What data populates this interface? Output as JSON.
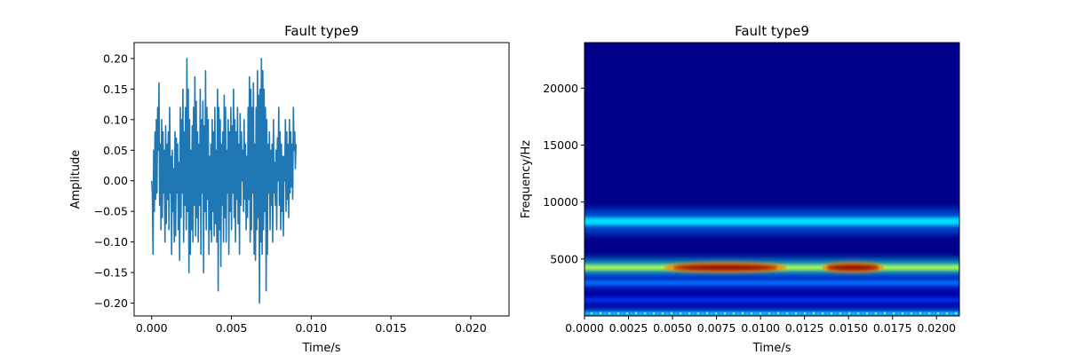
{
  "chart_data": [
    {
      "type": "line",
      "title": "Fault type9",
      "xlabel": "Time/s",
      "ylabel": "Amplitude",
      "xlim": [
        -0.0011,
        0.0224
      ],
      "ylim": [
        -0.221,
        0.226
      ],
      "x_ticks": [
        0.0,
        0.005,
        0.01,
        0.015,
        0.02
      ],
      "x_tick_labels": [
        "0.000",
        "0.005",
        "0.010",
        "0.015",
        "0.020"
      ],
      "y_ticks": [
        -0.2,
        -0.15,
        -0.1,
        -0.05,
        0.0,
        0.05,
        0.1,
        0.15,
        0.2
      ],
      "y_tick_labels": [
        "−0.20",
        "−0.15",
        "−0.10",
        "−0.05",
        "0.00",
        "0.05",
        "0.10",
        "0.15",
        "0.20"
      ],
      "grid": false,
      "line_color": "#1f77b4",
      "series": [
        {
          "sample_interval": 4.17e-05,
          "values": [
            0.0,
            -0.02,
            -0.12,
            0.05,
            -0.05,
            0.08,
            -0.03,
            0.1,
            -0.02,
            0.12,
            0.05,
            0.16,
            -0.04,
            0.06,
            -0.08,
            0.1,
            -0.06,
            0.08,
            -0.02,
            0.05,
            -0.1,
            0.09,
            -0.07,
            0.06,
            -0.03,
            0.08,
            -0.08,
            0.12,
            -0.02,
            0.04,
            -0.12,
            0.05,
            -0.05,
            0.02,
            -0.1,
            0.08,
            -0.09,
            0.07,
            -0.02,
            0.06,
            -0.08,
            0.03,
            -0.13,
            0.12,
            -0.06,
            0.1,
            -0.02,
            0.15,
            -0.1,
            0.08,
            -0.04,
            0.12,
            -0.08,
            0.2,
            -0.05,
            0.15,
            -0.15,
            0.1,
            -0.12,
            0.05,
            -0.08,
            0.09,
            -0.1,
            0.12,
            -0.04,
            0.17,
            -0.09,
            0.13,
            -0.06,
            0.08,
            -0.1,
            0.06,
            -0.04,
            0.15,
            -0.12,
            0.1,
            -0.02,
            0.13,
            -0.15,
            0.09,
            -0.05,
            0.18,
            -0.08,
            0.12,
            -0.03,
            0.1,
            -0.12,
            0.04,
            -0.08,
            0.06,
            -0.1,
            0.1,
            -0.05,
            0.08,
            -0.09,
            0.12,
            -0.07,
            0.05,
            -0.1,
            0.15,
            -0.18,
            0.12,
            -0.08,
            0.1,
            -0.14,
            0.06,
            -0.04,
            0.08,
            -0.1,
            0.14,
            -0.06,
            0.12,
            -0.1,
            0.05,
            -0.02,
            0.1,
            -0.12,
            0.08,
            -0.05,
            0.12,
            -0.08,
            0.09,
            -0.02,
            0.15,
            -0.06,
            0.1,
            -0.1,
            0.08,
            -0.03,
            0.12,
            -0.07,
            0.06,
            -0.12,
            0.11,
            -0.04,
            0.08,
            0.0,
            0.05,
            -0.05,
            0.1,
            -0.03,
            0.06,
            -0.08,
            0.04,
            -0.06,
            0.12,
            -0.03,
            0.17,
            -0.1,
            0.15,
            -0.08,
            0.12,
            -0.02,
            0.16,
            -0.12,
            0.06,
            -0.13,
            0.12,
            -0.08,
            0.18,
            -0.06,
            0.14,
            -0.2,
            0.15,
            -0.1,
            0.2,
            -0.12,
            0.18,
            -0.08,
            0.15,
            -0.05,
            0.12,
            -0.18,
            0.1,
            -0.12,
            0.06,
            -0.02,
            0.08,
            -0.08,
            0.05,
            -0.04,
            0.06,
            -0.1,
            0.1,
            -0.02,
            0.03,
            -0.04,
            0.05,
            -0.08,
            0.07,
            0.0,
            0.12,
            -0.04,
            0.08,
            -0.08,
            0.06,
            -0.05,
            0.04,
            -0.09,
            0.04,
            0.0,
            0.1,
            -0.05,
            0.08,
            -0.03,
            0.06,
            -0.06,
            0.1,
            -0.02,
            0.08,
            -0.01,
            0.06,
            -0.03,
            0.12,
            0.05,
            0.08,
            0.02,
            0.06
          ]
        }
      ]
    },
    {
      "type": "heatmap",
      "title": "Fault type9",
      "xlabel": "Time/s",
      "ylabel": "Frequency/Hz",
      "xlim": [
        0.0,
        0.0213
      ],
      "ylim": [
        0,
        24000
      ],
      "x_ticks": [
        0.0,
        0.0025,
        0.005,
        0.0075,
        0.01,
        0.0125,
        0.015,
        0.0175,
        0.02
      ],
      "x_tick_labels": [
        "0.0000",
        "0.0025",
        "0.0050",
        "0.0075",
        "0.0100",
        "0.0125",
        "0.0150",
        "0.0175",
        "0.0200"
      ],
      "y_ticks": [
        5000,
        10000,
        15000,
        20000
      ],
      "y_tick_labels": [
        "5000",
        "10000",
        "15000",
        "20000"
      ],
      "colormap": "jet",
      "background_color": "#00008b",
      "bands": [
        {
          "frequency_hz": 4250,
          "intensity": 0.55,
          "bandwidth_hz": 500,
          "hot_spots": [
            {
              "t_start": 0.0045,
              "t_end": 0.0115,
              "intensity": 1.0
            },
            {
              "t_start": 0.0135,
              "t_end": 0.017,
              "intensity": 1.0
            }
          ]
        },
        {
          "frequency_hz": 8300,
          "intensity": 0.35,
          "bandwidth_hz": 700
        },
        {
          "frequency_hz": 2900,
          "intensity": 0.25,
          "bandwidth_hz": 400
        },
        {
          "frequency_hz": 1400,
          "intensity": 0.2,
          "bandwidth_hz": 250
        },
        {
          "frequency_hz": 200,
          "intensity": 0.35,
          "bandwidth_hz": 300
        }
      ]
    }
  ]
}
